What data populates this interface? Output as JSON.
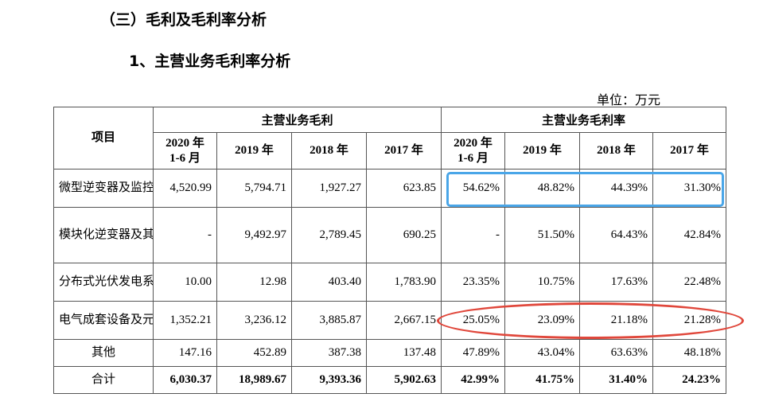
{
  "headings": {
    "section": "（三）毛利及毛利率分析",
    "subsection": "1、主营业务毛利率分析",
    "unit": "单位：万元"
  },
  "table": {
    "item_header": "项目",
    "group_gross_profit": "主营业务毛利",
    "group_gross_margin": "主营业务毛利率",
    "years": [
      "2020 年\n1-6 月",
      "2019 年",
      "2018 年",
      "2017 年"
    ],
    "rows": [
      {
        "item": "微型逆变器及监控设备",
        "profit": [
          "4,520.99",
          "5,794.71",
          "1,927.27",
          "623.85"
        ],
        "margin": [
          "54.62%",
          "48.82%",
          "44.39%",
          "31.30%"
        ]
      },
      {
        "item": "模块化逆变器及其他电力变换设备",
        "profit": [
          "-",
          "9,492.97",
          "2,789.45",
          "690.25"
        ],
        "margin": [
          "-",
          "51.50%",
          "64.43%",
          "42.84%"
        ]
      },
      {
        "item": "分布式光伏发电系统",
        "profit": [
          "10.00",
          "12.98",
          "403.40",
          "1,783.90"
        ],
        "margin": [
          "23.35%",
          "10.75%",
          "17.63%",
          "22.48%"
        ]
      },
      {
        "item": "电气成套设备及元器件",
        "profit": [
          "1,352.21",
          "3,236.12",
          "3,885.87",
          "2,667.15"
        ],
        "margin": [
          "25.05%",
          "23.09%",
          "21.18%",
          "21.28%"
        ]
      },
      {
        "item": "其他",
        "profit": [
          "147.16",
          "452.89",
          "387.38",
          "137.48"
        ],
        "margin": [
          "47.89%",
          "43.04%",
          "63.63%",
          "48.18%"
        ]
      },
      {
        "item": "合计",
        "profit": [
          "6,030.37",
          "18,989.67",
          "9,393.36",
          "5,902.63"
        ],
        "margin": [
          "42.99%",
          "41.75%",
          "31.40%",
          "24.23%"
        ]
      }
    ]
  },
  "annotations": {
    "rect_color": "#4aa6e8",
    "ellipse_color": "#e0473b"
  }
}
